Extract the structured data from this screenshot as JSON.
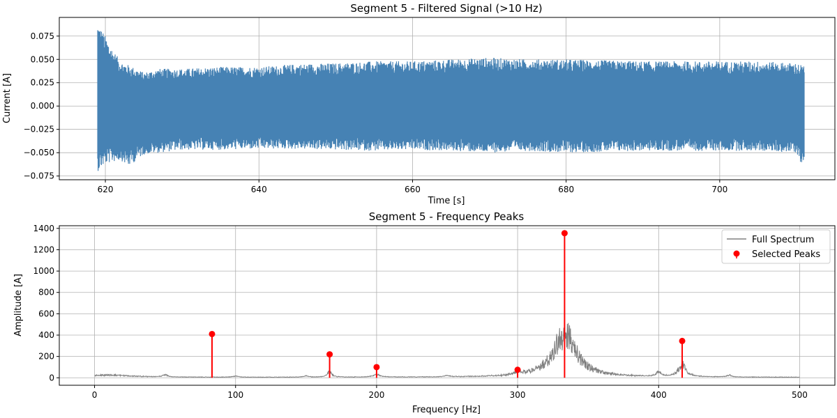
{
  "chart_data": [
    {
      "type": "line",
      "title": "Segment 5 - Filtered Signal (>10 Hz)",
      "xlabel": "Time [s]",
      "ylabel": "Current [A]",
      "xlim": [
        614,
        715
      ],
      "ylim": [
        -0.079,
        0.095
      ],
      "xticks": [
        620,
        640,
        660,
        680,
        700
      ],
      "yticks": [
        -0.075,
        -0.05,
        -0.025,
        0.0,
        0.025,
        0.05,
        0.075
      ],
      "ytick_labels": [
        "−0.075",
        "−0.050",
        "−0.025",
        "0.000",
        "0.025",
        "0.050",
        "0.075"
      ],
      "grid": true,
      "color": "#4682b4",
      "series": [
        {
          "t_start": 619.0,
          "t_end": 711.0,
          "envelope_upper": [
            [
              619,
              0.09
            ],
            [
              620,
              0.075
            ],
            [
              621,
              0.06
            ],
            [
              622,
              0.048
            ],
            [
              623,
              0.044
            ],
            [
              625,
              0.036
            ],
            [
              627,
              0.04
            ],
            [
              630,
              0.04
            ],
            [
              635,
              0.042
            ],
            [
              640,
              0.042
            ],
            [
              645,
              0.045
            ],
            [
              650,
              0.046
            ],
            [
              655,
              0.048
            ],
            [
              660,
              0.048
            ],
            [
              665,
              0.05
            ],
            [
              670,
              0.052
            ],
            [
              675,
              0.05
            ],
            [
              680,
              0.05
            ],
            [
              685,
              0.049
            ],
            [
              690,
              0.048
            ],
            [
              695,
              0.048
            ],
            [
              700,
              0.048
            ],
            [
              705,
              0.048
            ],
            [
              710,
              0.046
            ],
            [
              711,
              0.043
            ]
          ],
          "envelope_lower": [
            [
              619,
              -0.07
            ],
            [
              620,
              -0.062
            ],
            [
              622,
              -0.058
            ],
            [
              623,
              -0.065
            ],
            [
              625,
              -0.052
            ],
            [
              630,
              -0.047
            ],
            [
              635,
              -0.047
            ],
            [
              640,
              -0.046
            ],
            [
              645,
              -0.046
            ],
            [
              650,
              -0.047
            ],
            [
              655,
              -0.048
            ],
            [
              660,
              -0.047
            ],
            [
              665,
              -0.048
            ],
            [
              670,
              -0.05
            ],
            [
              675,
              -0.048
            ],
            [
              680,
              -0.05
            ],
            [
              685,
              -0.049
            ],
            [
              690,
              -0.048
            ],
            [
              695,
              -0.048
            ],
            [
              700,
              -0.048
            ],
            [
              705,
              -0.048
            ],
            [
              710,
              -0.05
            ],
            [
              711,
              -0.07
            ]
          ]
        }
      ]
    },
    {
      "type": "line",
      "title": "Segment 5 - Frequency Peaks",
      "xlabel": "Frequency [Hz]",
      "ylabel": "Amplitude [A]",
      "xlim": [
        -25,
        525
      ],
      "ylim": [
        -70,
        1425
      ],
      "xticks": [
        0,
        100,
        200,
        300,
        400,
        500
      ],
      "yticks": [
        0,
        200,
        400,
        600,
        800,
        1000,
        1200,
        1400
      ],
      "grid": true,
      "legend": "top-right",
      "series": [
        {
          "name": "Full Spectrum",
          "color": "#808080",
          "baseline": 5,
          "features": [
            [
              10,
              20,
              25
            ],
            [
              50,
              2,
              25
            ],
            [
              100,
              2,
              15
            ],
            [
              150,
              2,
              15
            ],
            [
              166.7,
              2,
              60
            ],
            [
              200,
              3,
              30
            ],
            [
              250,
              2,
              15
            ],
            [
              300,
              3,
              30
            ],
            [
              333.3,
              10,
              500
            ],
            [
              400,
              2,
              50
            ],
            [
              416.7,
              3,
              150
            ],
            [
              450,
              2,
              20
            ]
          ]
        },
        {
          "name": "Selected Peaks",
          "color": "#ff0000",
          "x": [
            83.3,
            166.7,
            200.0,
            300.0,
            333.3,
            416.7
          ],
          "y": [
            410,
            220,
            100,
            75,
            1355,
            345
          ]
        }
      ]
    }
  ]
}
